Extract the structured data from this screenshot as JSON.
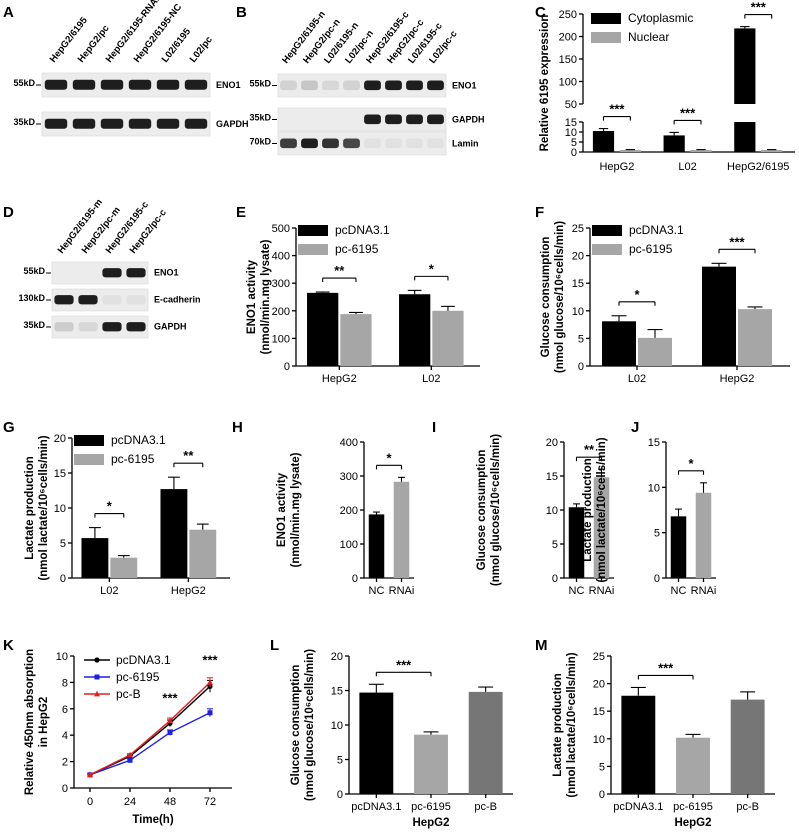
{
  "figure": {
    "panels": [
      "A",
      "B",
      "C",
      "D",
      "E",
      "F",
      "G",
      "H",
      "I",
      "J",
      "K",
      "L",
      "M"
    ]
  },
  "blots": [
    {
      "panel": "A",
      "lanes": [
        "HepG2/6195",
        "HepG2/pc",
        "HepG2/6195-RNAi",
        "HepG2/6195-NC",
        "L02/6195",
        "L02/pc"
      ],
      "rows": [
        {
          "mw": "55kD",
          "protein": "ENO1",
          "intensities": [
            1,
            1,
            1,
            1,
            1,
            1
          ]
        },
        {
          "mw": "35kD",
          "protein": "GAPDH",
          "intensities": [
            1,
            1,
            1,
            1,
            1,
            1
          ]
        }
      ]
    },
    {
      "panel": "B",
      "lanes": [
        "HepG2/6195-n",
        "HepG2/pc-n",
        "L02/6195-n",
        "L02/pc-n",
        "HepG2/6195-c",
        "HepG2/pc-c",
        "L02/6195-c",
        "L02/pc-c"
      ],
      "rows": [
        {
          "mw": "55kD",
          "protein": "ENO1",
          "intensities": [
            0.12,
            0.18,
            0.1,
            0.12,
            1,
            1,
            1,
            1
          ]
        },
        {
          "mw": "35kD",
          "protein": "GAPDH",
          "intensities": [
            0,
            0,
            0,
            0,
            1,
            1,
            1,
            1
          ]
        },
        {
          "mw": "70kD",
          "protein": "Lamin",
          "intensities": [
            0.85,
            1,
            0.9,
            0.8,
            0.05,
            0.05,
            0.05,
            0.05
          ]
        }
      ]
    },
    {
      "panel": "D",
      "lanes": [
        "HepG2/6195-m",
        "HepG2/pc-m",
        "HepG2/6195-c",
        "HepG2/pc-c"
      ],
      "rows": [
        {
          "mw": "55kD",
          "protein": "ENO1",
          "intensities": [
            0,
            0,
            1,
            1
          ]
        },
        {
          "mw": "130kD",
          "protein": "E-cadherin",
          "intensities": [
            1,
            1,
            0.05,
            0.05
          ]
        },
        {
          "mw": "35kD",
          "protein": "GAPDH",
          "intensities": [
            0.15,
            0.1,
            1,
            1
          ]
        }
      ]
    }
  ],
  "chart_data": [
    {
      "panel": "C",
      "type": "bar",
      "title": "",
      "xlabel": "",
      "ylabel": "Relative 6195 expression",
      "categories": [
        "HepG2",
        "L02",
        "HepG2/6195"
      ],
      "series": [
        {
          "name": "Cytoplasmic",
          "color": "#000000",
          "values": [
            10.5,
            8.3,
            218
          ],
          "errors": [
            1.2,
            1.5,
            4
          ]
        },
        {
          "name": "Nuclear",
          "color": "#a6a6a6",
          "values": [
            1,
            1,
            1
          ],
          "errors": [
            0.2,
            0.2,
            0.2
          ]
        }
      ],
      "broken_axis": {
        "lower": [
          0,
          15
        ],
        "upper": [
          50,
          250
        ]
      },
      "yticks_lower": [
        "0",
        "5",
        "10",
        "15"
      ],
      "yticks_upper": [
        "50",
        "100",
        "150",
        "200",
        "250"
      ],
      "significance": [
        "***",
        "***",
        "***"
      ],
      "legend": "top-left"
    },
    {
      "panel": "E",
      "type": "bar",
      "ylabel": "ENO1 activity",
      "ylabel2": "(nmol/min.mg lysate)",
      "categories": [
        "HepG2",
        "L02"
      ],
      "series": [
        {
          "name": "pcDNA3.1",
          "color": "#000000",
          "values": [
            265,
            260
          ],
          "errors": [
            3,
            14
          ]
        },
        {
          "name": "pc-6195",
          "color": "#a6a6a6",
          "values": [
            188,
            200
          ],
          "errors": [
            6,
            16
          ]
        }
      ],
      "ylim": [
        0,
        500
      ],
      "yticks": [
        "0",
        "100",
        "200",
        "300",
        "400",
        "500"
      ],
      "significance": [
        "**",
        "*"
      ],
      "legend": "top-left"
    },
    {
      "panel": "F",
      "type": "bar",
      "ylabel": "Glucose consumption",
      "ylabel2": "(nmol glucose/10⁶cells/min)",
      "categories": [
        "L02",
        "HepG2"
      ],
      "series": [
        {
          "name": "pcDNA3.1",
          "color": "#000000",
          "values": [
            8.1,
            18.0
          ],
          "errors": [
            1.0,
            0.6
          ]
        },
        {
          "name": "pc-6195",
          "color": "#a6a6a6",
          "values": [
            5.1,
            10.3
          ],
          "errors": [
            1.5,
            0.4
          ]
        }
      ],
      "ylim": [
        0,
        25
      ],
      "yticks": [
        "0",
        "5",
        "10",
        "15",
        "20",
        "25"
      ],
      "significance": [
        "*",
        "***"
      ],
      "legend": "top-left"
    },
    {
      "panel": "G",
      "type": "bar",
      "ylabel": "Lactate production",
      "ylabel2": "(nmol lactate/10⁶cells/min)",
      "categories": [
        "L02",
        "HepG2"
      ],
      "series": [
        {
          "name": "pcDNA3.1",
          "color": "#000000",
          "values": [
            5.7,
            12.7
          ],
          "errors": [
            1.5,
            1.7
          ]
        },
        {
          "name": "pc-6195",
          "color": "#a6a6a6",
          "values": [
            2.9,
            6.9
          ],
          "errors": [
            0.3,
            0.8
          ]
        }
      ],
      "ylim": [
        0,
        20
      ],
      "yticks": [
        "0",
        "5",
        "10",
        "15",
        "20"
      ],
      "significance": [
        "*",
        "**"
      ],
      "legend": "top-left"
    },
    {
      "panel": "H",
      "type": "bar",
      "ylabel": "ENO1 activity",
      "ylabel2": "(nmol/min.mg lysate)",
      "categories": [
        "NC",
        "RNAi"
      ],
      "series": [
        {
          "name": "",
          "colors": [
            "#000000",
            "#a6a6a6"
          ],
          "values": [
            187,
            283
          ],
          "errors": [
            7,
            13
          ]
        }
      ],
      "ylim": [
        0,
        400
      ],
      "yticks": [
        "0",
        "100",
        "200",
        "300",
        "400"
      ],
      "significance": [
        "*"
      ]
    },
    {
      "panel": "I",
      "type": "bar",
      "ylabel": "Glucose consumption",
      "ylabel2": "(nmol glucose/10⁶cells/min)",
      "categories": [
        "NC",
        "RNAi"
      ],
      "series": [
        {
          "name": "",
          "colors": [
            "#000000",
            "#a6a6a6"
          ],
          "values": [
            10.4,
            14.8
          ],
          "errors": [
            0.5,
            1.2
          ]
        }
      ],
      "ylim": [
        0,
        20
      ],
      "yticks": [
        "0",
        "5",
        "10",
        "15",
        "20"
      ],
      "significance": [
        "**"
      ]
    },
    {
      "panel": "J",
      "type": "bar",
      "ylabel": "Lactate production",
      "ylabel2": "(nmol lactate/10⁶cells/min)",
      "categories": [
        "NC",
        "RNAi"
      ],
      "series": [
        {
          "name": "",
          "colors": [
            "#000000",
            "#a6a6a6"
          ],
          "values": [
            6.8,
            9.4
          ],
          "errors": [
            0.8,
            1.1
          ]
        }
      ],
      "ylim": [
        0,
        15
      ],
      "yticks": [
        "0",
        "5",
        "10",
        "15"
      ],
      "significance": [
        "*"
      ]
    },
    {
      "panel": "K",
      "type": "line",
      "xlabel": "Time(h)",
      "ylabel": "Relative 450nm absorption",
      "ylabel2": "in HepG2",
      "x": [
        0,
        24,
        48,
        72
      ],
      "series": [
        {
          "name": "pcDNA3.1",
          "color": "#000000",
          "marker": "circle",
          "values": [
            1.0,
            2.4,
            4.9,
            7.7
          ],
          "errors": [
            0.05,
            0.1,
            0.25,
            0.45
          ]
        },
        {
          "name": "pc-6195",
          "color": "#1f1fe0",
          "marker": "square",
          "values": [
            1.0,
            2.1,
            4.2,
            5.7
          ],
          "errors": [
            0.05,
            0.1,
            0.2,
            0.3
          ]
        },
        {
          "name": "pc-B",
          "color": "#e02020",
          "marker": "triangle",
          "values": [
            1.0,
            2.5,
            5.1,
            8.0
          ],
          "errors": [
            0.05,
            0.1,
            0.2,
            0.35
          ]
        }
      ],
      "xticks": [
        "0",
        "24",
        "48",
        "72"
      ],
      "ylim": [
        0,
        10
      ],
      "yticks": [
        "0",
        "2",
        "4",
        "6",
        "8",
        "10"
      ],
      "significance": [
        {
          "x": 48,
          "label": "***",
          "color": "#1f1fe0"
        },
        {
          "x": 72,
          "label": "***",
          "color": "#1f1fe0"
        }
      ],
      "legend": "top-left"
    },
    {
      "panel": "L",
      "type": "bar",
      "ylabel": "Glucose consumption",
      "ylabel2": "(nmol glucose/10⁶cells/min)",
      "xlabel": "HepG2",
      "categories": [
        "pcDNA3.1",
        "pc-6195",
        "pc-B"
      ],
      "series": [
        {
          "name": "",
          "colors": [
            "#000000",
            "#a6a6a6",
            "#767676"
          ],
          "values": [
            14.7,
            8.6,
            14.8
          ],
          "errors": [
            1.2,
            0.4,
            0.7
          ]
        }
      ],
      "ylim": [
        0,
        20
      ],
      "yticks": [
        "0",
        "5",
        "10",
        "15",
        "20"
      ],
      "significance": [
        "***"
      ]
    },
    {
      "panel": "M",
      "type": "bar",
      "ylabel": "Lactate production",
      "ylabel2": "(nmol lactate/10⁶cells/min)",
      "xlabel": "HepG2",
      "categories": [
        "pcDNA3.1",
        "pc-6195",
        "pc-B"
      ],
      "series": [
        {
          "name": "",
          "colors": [
            "#000000",
            "#a6a6a6",
            "#767676"
          ],
          "values": [
            17.8,
            10.2,
            17.1
          ],
          "errors": [
            1.5,
            0.6,
            1.4
          ]
        }
      ],
      "ylim": [
        0,
        25
      ],
      "yticks": [
        "0",
        "5",
        "10",
        "15",
        "20",
        "25"
      ],
      "significance": [
        "***"
      ]
    }
  ]
}
